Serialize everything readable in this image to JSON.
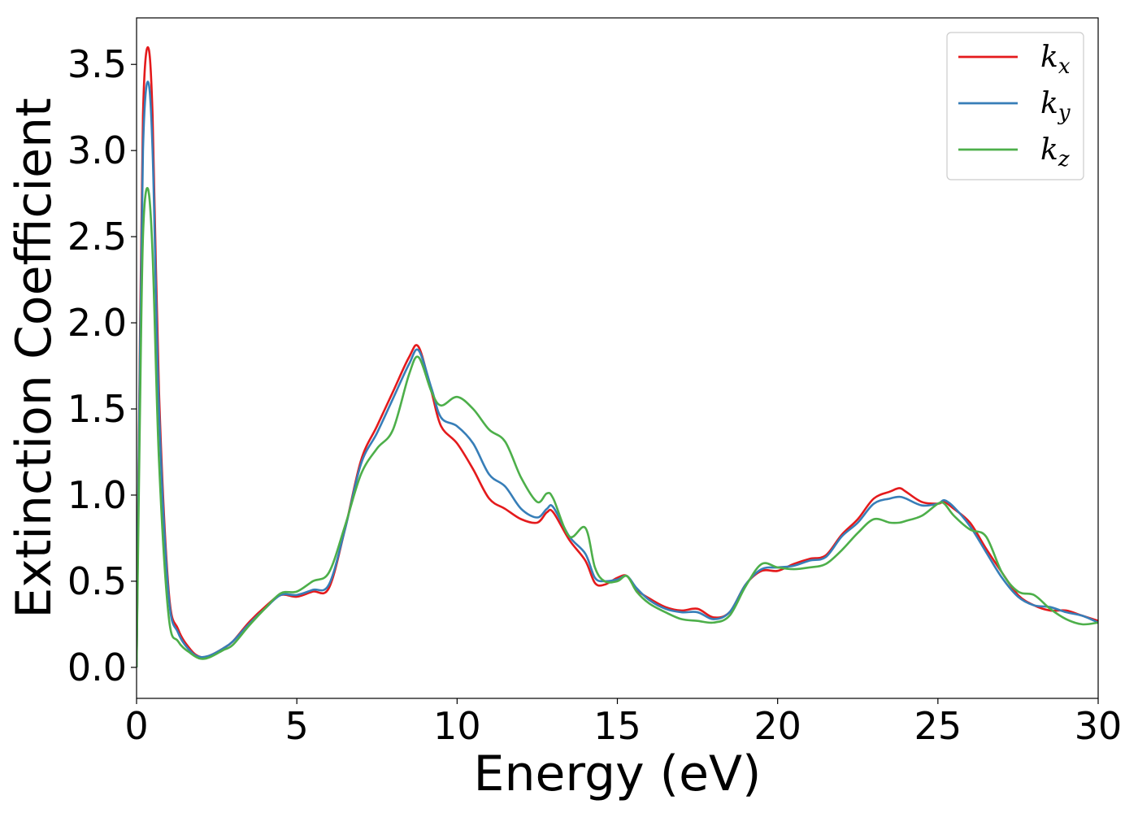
{
  "chart_data": {
    "type": "line",
    "xlabel": "Energy (eV)",
    "ylabel": "Extinction Coefficient",
    "xlim": [
      0,
      30
    ],
    "ylim": [
      -0.18,
      3.77
    ],
    "xticks": [
      0,
      5,
      10,
      15,
      20,
      25,
      30
    ],
    "xtick_labels": [
      "0",
      "5",
      "10",
      "15",
      "20",
      "25",
      "30"
    ],
    "yticks": [
      0.0,
      0.5,
      1.0,
      1.5,
      2.0,
      2.5,
      3.0,
      3.5
    ],
    "ytick_labels": [
      "0.0",
      "0.5",
      "1.0",
      "1.5",
      "2.0",
      "2.5",
      "3.0",
      "3.5"
    ],
    "grid": false,
    "legend_position": "top-right",
    "series": [
      {
        "name": "k_x",
        "label_base": "k",
        "label_sub": "x",
        "color": "#e41a1c",
        "x": [
          0,
          0.1,
          0.2,
          0.35,
          0.5,
          0.7,
          1.0,
          1.3,
          1.7,
          2.0,
          2.3,
          2.7,
          3.0,
          3.5,
          4.0,
          4.5,
          5.0,
          5.5,
          6.0,
          6.5,
          7.0,
          7.5,
          8.0,
          8.5,
          8.8,
          9.2,
          9.5,
          10.0,
          10.5,
          11.0,
          11.5,
          12.0,
          12.5,
          12.8,
          13.0,
          13.5,
          14.0,
          14.3,
          14.6,
          15.0,
          15.3,
          15.6,
          16.0,
          16.5,
          17.0,
          17.5,
          18.0,
          18.5,
          19.0,
          19.5,
          20.0,
          20.5,
          21.0,
          21.5,
          22.0,
          22.5,
          23.0,
          23.5,
          23.8,
          24.0,
          24.5,
          25.0,
          25.2,
          25.5,
          26.0,
          26.5,
          27.0,
          27.5,
          28.0,
          28.5,
          29.0,
          29.5,
          30.0
        ],
        "y": [
          0.0,
          1.8,
          3.2,
          3.6,
          3.2,
          1.6,
          0.45,
          0.22,
          0.1,
          0.06,
          0.07,
          0.11,
          0.15,
          0.26,
          0.35,
          0.42,
          0.41,
          0.44,
          0.46,
          0.8,
          1.2,
          1.4,
          1.6,
          1.8,
          1.86,
          1.6,
          1.4,
          1.3,
          1.15,
          0.98,
          0.92,
          0.86,
          0.84,
          0.9,
          0.9,
          0.74,
          0.62,
          0.49,
          0.48,
          0.52,
          0.53,
          0.45,
          0.4,
          0.35,
          0.33,
          0.34,
          0.29,
          0.32,
          0.48,
          0.56,
          0.56,
          0.6,
          0.63,
          0.65,
          0.77,
          0.86,
          0.98,
          1.02,
          1.04,
          1.02,
          0.96,
          0.95,
          0.96,
          0.92,
          0.84,
          0.69,
          0.55,
          0.42,
          0.36,
          0.33,
          0.33,
          0.3,
          0.27
        ]
      },
      {
        "name": "k_y",
        "label_base": "k",
        "label_sub": "y",
        "color": "#377eb8",
        "x": [
          0,
          0.1,
          0.2,
          0.35,
          0.5,
          0.7,
          1.0,
          1.3,
          1.7,
          2.0,
          2.3,
          2.7,
          3.0,
          3.5,
          4.0,
          4.5,
          5.0,
          5.5,
          6.0,
          6.5,
          7.0,
          7.5,
          8.0,
          8.5,
          8.8,
          9.2,
          9.5,
          10.0,
          10.5,
          11.0,
          11.5,
          12.0,
          12.5,
          12.8,
          13.0,
          13.5,
          14.0,
          14.3,
          14.6,
          15.0,
          15.3,
          15.6,
          16.0,
          16.5,
          17.0,
          17.5,
          18.0,
          18.5,
          19.0,
          19.5,
          20.0,
          20.5,
          21.0,
          21.5,
          22.0,
          22.5,
          23.0,
          23.5,
          23.8,
          24.0,
          24.5,
          25.0,
          25.2,
          25.5,
          26.0,
          26.5,
          27.0,
          27.5,
          28.0,
          28.5,
          29.0,
          29.5,
          30.0
        ],
        "y": [
          0.0,
          1.7,
          3.0,
          3.4,
          3.0,
          1.5,
          0.42,
          0.2,
          0.09,
          0.06,
          0.07,
          0.11,
          0.15,
          0.25,
          0.34,
          0.42,
          0.42,
          0.45,
          0.48,
          0.8,
          1.18,
          1.36,
          1.56,
          1.76,
          1.84,
          1.62,
          1.45,
          1.4,
          1.3,
          1.12,
          1.05,
          0.92,
          0.87,
          0.92,
          0.93,
          0.76,
          0.66,
          0.52,
          0.5,
          0.51,
          0.53,
          0.46,
          0.39,
          0.34,
          0.32,
          0.32,
          0.28,
          0.32,
          0.48,
          0.57,
          0.58,
          0.59,
          0.62,
          0.64,
          0.76,
          0.84,
          0.95,
          0.98,
          0.99,
          0.98,
          0.94,
          0.95,
          0.97,
          0.93,
          0.82,
          0.67,
          0.52,
          0.41,
          0.36,
          0.35,
          0.32,
          0.3,
          0.26
        ]
      },
      {
        "name": "k_z",
        "label_base": "k",
        "label_sub": "z",
        "color": "#4daf4a",
        "x": [
          0,
          0.1,
          0.2,
          0.35,
          0.5,
          0.7,
          1.0,
          1.3,
          1.7,
          2.0,
          2.3,
          2.7,
          3.0,
          3.5,
          4.0,
          4.5,
          5.0,
          5.5,
          6.0,
          6.5,
          7.0,
          7.5,
          8.0,
          8.5,
          8.8,
          9.2,
          9.5,
          10.0,
          10.5,
          11.0,
          11.5,
          12.0,
          12.5,
          12.8,
          13.0,
          13.5,
          14.0,
          14.3,
          14.6,
          15.0,
          15.3,
          15.6,
          16.0,
          16.5,
          17.0,
          17.5,
          18.0,
          18.5,
          19.0,
          19.5,
          20.0,
          20.5,
          21.0,
          21.5,
          22.0,
          22.5,
          23.0,
          23.5,
          23.8,
          24.0,
          24.5,
          25.0,
          25.2,
          25.5,
          26.0,
          26.5,
          27.0,
          27.5,
          28.0,
          28.5,
          29.0,
          29.5,
          30.0
        ],
        "y": [
          0.0,
          1.4,
          2.5,
          2.78,
          2.4,
          1.2,
          0.3,
          0.15,
          0.08,
          0.05,
          0.06,
          0.1,
          0.13,
          0.24,
          0.34,
          0.43,
          0.44,
          0.5,
          0.55,
          0.82,
          1.12,
          1.27,
          1.38,
          1.7,
          1.8,
          1.6,
          1.52,
          1.57,
          1.5,
          1.38,
          1.31,
          1.1,
          0.96,
          1.01,
          0.98,
          0.76,
          0.81,
          0.58,
          0.5,
          0.5,
          0.53,
          0.44,
          0.37,
          0.32,
          0.28,
          0.27,
          0.26,
          0.3,
          0.47,
          0.6,
          0.58,
          0.57,
          0.58,
          0.6,
          0.68,
          0.78,
          0.86,
          0.84,
          0.84,
          0.85,
          0.88,
          0.95,
          0.95,
          0.88,
          0.8,
          0.76,
          0.55,
          0.44,
          0.42,
          0.34,
          0.28,
          0.25,
          0.26
        ]
      }
    ]
  }
}
